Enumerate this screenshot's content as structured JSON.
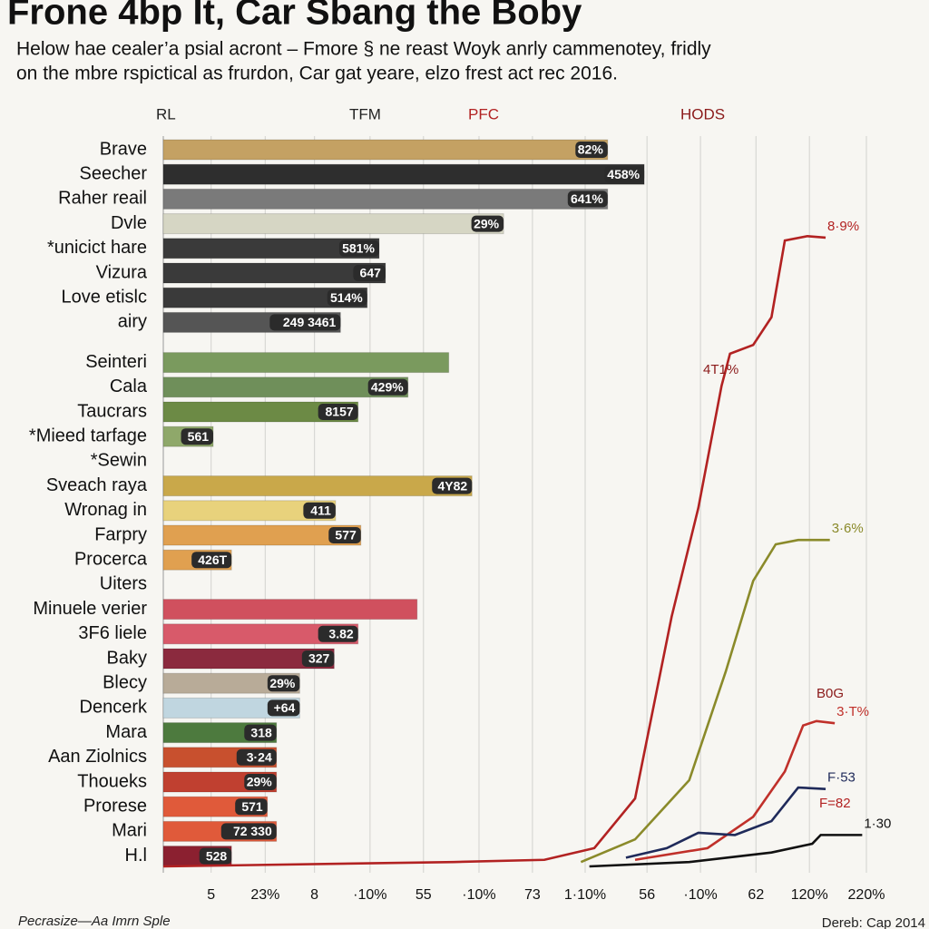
{
  "chart_data": {
    "type": "bar",
    "orientation": "horizontal",
    "title": "Frone 4bp It, Car Sbang the Boby",
    "subtitle": [
      "Helow hae cealer’a psial acront – Fmore § ne reast Woyk anrly cammenotey, fridly",
      "on the mbre rspictical as frurdon, Car gat yeare, elzo frest act rec 2016."
    ],
    "column_headers": [
      "RL",
      "TFM",
      "PFC",
      "HODS"
    ],
    "categories": [
      "Brave",
      "Seecher",
      "Raher reail",
      "Dvle",
      "*unicict hare",
      "Vizura",
      "Love etislc",
      "airy",
      "Seinteri",
      "Cala",
      "Taucrars",
      "*Mieed tarfage",
      "*Sewin",
      "Sveach raya",
      "Wronag in",
      "Farpry",
      "Procerca",
      "Uiters",
      "Minuele verier",
      "3F6 liele",
      "Baky",
      "Blecy",
      "Dencerk",
      "Mara",
      "Aan Ziolnics",
      "Thoueks",
      "Prorese",
      "Mari",
      "H.l"
    ],
    "values": [
      63.2,
      68.4,
      63.2,
      48.4,
      30.7,
      31.6,
      29,
      25.2,
      40.6,
      34.8,
      27.7,
      7.1,
      null,
      43.9,
      24.5,
      28.1,
      9.7,
      null,
      36.1,
      27.7,
      24.3,
      19.4,
      19.4,
      16.1,
      16.1,
      16.1,
      14.8,
      16.1,
      9.7
    ],
    "bar_texts": [
      "82%",
      "458%",
      "641%",
      "29%",
      "581%",
      "647",
      "514%",
      "249 3461",
      null,
      "429%",
      "8157",
      "561",
      null,
      "4Y82",
      "411",
      "577",
      "426T",
      null,
      null,
      "3.82",
      "327",
      "29%",
      "+64",
      "318",
      "3·24",
      "29%",
      "571",
      "72 330",
      "528"
    ],
    "colors": [
      "#c4a163",
      "#2e2e2e",
      "#7a7a7a",
      "#d6d6c4",
      "#3a3a3a",
      "#3a3a3a",
      "#3a3a3a",
      "#555555",
      "#7a9a5e",
      "#6f8f5a",
      "#6c8a45",
      "#8fa86a",
      "#ffffff",
      "#c9a84a",
      "#e8d27c",
      "#e0a050",
      "#e0a050",
      "#ffffff",
      "#d0505e",
      "#d85a6a",
      "#8b2a3e",
      "#b8ab98",
      "#c0d6e0",
      "#4d7a3e",
      "#c8502e",
      "#c04030",
      "#e05a3a",
      "#e05a3a",
      "#8b2030"
    ],
    "xlim": [
      0,
      100
    ],
    "xticks": [
      {
        "value": 6.8,
        "label": "5"
      },
      {
        "value": 14.5,
        "label": "23%"
      },
      {
        "value": 21.5,
        "label": "8"
      },
      {
        "value": 29.4,
        "label": "·10%"
      },
      {
        "value": 37,
        "label": "55"
      },
      {
        "value": 44.9,
        "label": "·10%"
      },
      {
        "value": 52.5,
        "label": "73"
      },
      {
        "value": 60,
        "label": "1·10%"
      },
      {
        "value": 68.8,
        "label": "56"
      },
      {
        "value": 76.4,
        "label": "·10%"
      },
      {
        "value": 84.3,
        "label": "62"
      },
      {
        "value": 91.9,
        "label": "120%"
      },
      {
        "value": 100,
        "label": "220%"
      }
    ],
    "y2lim": [
      0,
      100
    ],
    "grid": true,
    "series": [
      {
        "color": "#b22222",
        "end_label": "8·9%",
        "x": [
          0,
          41.3,
          54.2,
          61.3,
          67.1,
          72.3,
          76.1,
          79.4,
          80.6,
          83.9,
          86.5,
          88.4,
          91.6,
          94.2
        ],
        "values": [
          0,
          0.6,
          0.9,
          2.5,
          9.3,
          34.2,
          49.1,
          65.8,
          70.2,
          71.4,
          75.2,
          85.7,
          86.3,
          86.1
        ]
      },
      {
        "color": "#8a8a2a",
        "end_label": "3·6%",
        "x": [
          59.4,
          67.1,
          74.8,
          80,
          83.9,
          87.1,
          90.3,
          94.8
        ],
        "values": [
          0.6,
          3.7,
          11.8,
          26.7,
          39.1,
          44.1,
          44.7,
          44.7
        ]
      },
      {
        "color": "#c0302a",
        "end_label": "3·T%",
        "x": [
          67.1,
          77.4,
          83.9,
          88.4,
          91,
          92.9,
          95.5
        ],
        "values": [
          0.9,
          2.5,
          6.8,
          13,
          19.3,
          19.9,
          19.6
        ]
      },
      {
        "color": "#1f2a5a",
        "end_label": "F·53",
        "x": [
          65.8,
          71.6,
          76.1,
          81.3,
          86.5,
          90.3,
          94.2
        ],
        "values": [
          1.2,
          2.5,
          4.6,
          4.3,
          6.2,
          10.8,
          10.6
        ]
      },
      {
        "color": "#111111",
        "end_label": "1·30",
        "x": [
          60.6,
          74.8,
          86.5,
          92.3,
          93.5,
          99.4
        ],
        "values": [
          0,
          0.6,
          1.9,
          3.1,
          4.3,
          4.3
        ]
      }
    ],
    "annotations": [
      "4T1%",
      "B0G",
      "F=82"
    ],
    "footer_left": "Pecrasize—Aa Imrn Sple",
    "footer_right": "Dereb: Cap 2014"
  }
}
